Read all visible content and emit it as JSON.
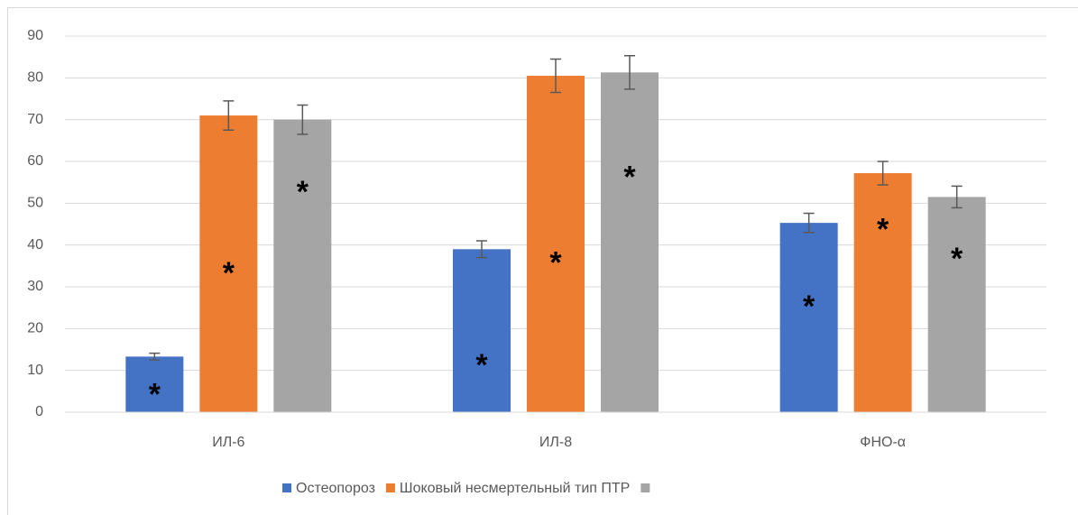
{
  "chart_data": {
    "type": "bar",
    "categories": [
      "ИЛ-6",
      "ИЛ-8",
      "ФНО-α"
    ],
    "series": [
      {
        "name": "Остеопороз",
        "color": "#4472c4",
        "values": [
          13.3,
          39,
          45.3
        ],
        "errors": [
          0.8,
          2,
          2.3
        ],
        "annotation": "*",
        "annotation_y": [
          5.5,
          12.5,
          26.5
        ]
      },
      {
        "name": "Шоковый несмертельный тип ПТР",
        "color": "#ed7d31",
        "values": [
          71,
          80.5,
          57.2
        ],
        "errors": [
          3.5,
          4,
          2.8
        ],
        "annotation": "*",
        "annotation_y": [
          34.5,
          37,
          45
        ]
      },
      {
        "color": "#a5a5a5",
        "values": [
          70,
          81.3,
          51.5
        ],
        "errors": [
          3.5,
          4,
          2.6
        ],
        "annotation": "*",
        "annotation_y": [
          54,
          57.5,
          38
        ]
      }
    ],
    "ylim": [
      0,
      90
    ],
    "yticks": [
      0,
      10,
      20,
      30,
      40,
      50,
      60,
      70,
      80,
      90
    ],
    "grid": true,
    "legend": "bottom"
  }
}
